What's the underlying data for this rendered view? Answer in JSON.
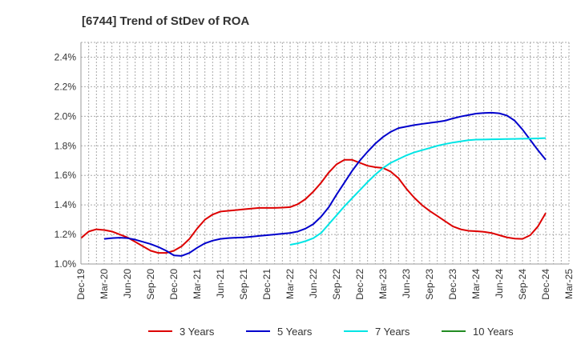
{
  "chart_data": {
    "type": "line",
    "title": "[6744]  Trend of StDev of ROA",
    "xlabel": "",
    "ylabel": "",
    "ylim": [
      1.0,
      2.5
    ],
    "yticks": [
      1.0,
      1.2,
      1.4,
      1.6,
      1.8,
      2.0,
      2.2,
      2.4
    ],
    "ytick_labels": [
      "1.0%",
      "1.2%",
      "1.4%",
      "1.6%",
      "1.8%",
      "2.0%",
      "2.2%",
      "2.4%"
    ],
    "xtick_labels": [
      "Dec-19",
      "Mar-20",
      "Jun-20",
      "Sep-20",
      "Dec-20",
      "Mar-21",
      "Jun-21",
      "Sep-21",
      "Dec-21",
      "Mar-22",
      "Jun-22",
      "Sep-22",
      "Dec-22",
      "Mar-23",
      "Jun-23",
      "Sep-23",
      "Dec-23",
      "Mar-24",
      "Jun-24",
      "Sep-24",
      "Dec-24",
      "Mar-25"
    ],
    "x_range": [
      "Dec-19",
      "Mar-25"
    ],
    "grid": true,
    "legend_position": "bottom",
    "series": [
      {
        "name": "3 Years",
        "color": "#dd0000",
        "x": [
          "Dec-19",
          "Jan-20",
          "Feb-20",
          "Mar-20",
          "Apr-20",
          "May-20",
          "Jun-20",
          "Jul-20",
          "Aug-20",
          "Sep-20",
          "Oct-20",
          "Nov-20",
          "Dec-20",
          "Jan-21",
          "Feb-21",
          "Mar-21",
          "Apr-21",
          "May-21",
          "Jun-21",
          "Jul-21",
          "Aug-21",
          "Sep-21",
          "Oct-21",
          "Nov-21",
          "Dec-21",
          "Jan-22",
          "Feb-22",
          "Mar-22",
          "Apr-22",
          "May-22",
          "Jun-22",
          "Jul-22",
          "Aug-22",
          "Sep-22",
          "Oct-22",
          "Nov-22",
          "Dec-22",
          "Jan-23",
          "Feb-23",
          "Mar-23",
          "Apr-23",
          "May-23",
          "Jun-23",
          "Jul-23",
          "Aug-23",
          "Sep-23",
          "Oct-23",
          "Nov-23",
          "Dec-23",
          "Jan-24",
          "Feb-24",
          "Mar-24",
          "Apr-24",
          "May-24",
          "Jun-24",
          "Jul-24",
          "Aug-24",
          "Sep-24",
          "Oct-24",
          "Nov-24",
          "Dec-24"
        ],
        "values": [
          1.175,
          1.22,
          1.235,
          1.23,
          1.22,
          1.2,
          1.18,
          1.15,
          1.12,
          1.09,
          1.075,
          1.075,
          1.09,
          1.12,
          1.17,
          1.24,
          1.3,
          1.335,
          1.355,
          1.36,
          1.365,
          1.37,
          1.375,
          1.38,
          1.38,
          1.38,
          1.382,
          1.385,
          1.405,
          1.44,
          1.49,
          1.55,
          1.62,
          1.675,
          1.705,
          1.705,
          1.685,
          1.665,
          1.655,
          1.65,
          1.625,
          1.58,
          1.51,
          1.45,
          1.4,
          1.36,
          1.325,
          1.29,
          1.255,
          1.235,
          1.225,
          1.222,
          1.218,
          1.21,
          1.195,
          1.18,
          1.172,
          1.17,
          1.195,
          1.255,
          1.345
        ]
      },
      {
        "name": "5 Years",
        "color": "#0000cc",
        "x": [
          "Mar-20",
          "Apr-20",
          "May-20",
          "Jun-20",
          "Jul-20",
          "Aug-20",
          "Sep-20",
          "Oct-20",
          "Nov-20",
          "Dec-20",
          "Jan-21",
          "Feb-21",
          "Mar-21",
          "Apr-21",
          "May-21",
          "Jun-21",
          "Jul-21",
          "Aug-21",
          "Sep-21",
          "Oct-21",
          "Nov-21",
          "Dec-21",
          "Jan-22",
          "Feb-22",
          "Mar-22",
          "Apr-22",
          "May-22",
          "Jun-22",
          "Jul-22",
          "Aug-22",
          "Sep-22",
          "Oct-22",
          "Nov-22",
          "Dec-22",
          "Jan-23",
          "Feb-23",
          "Mar-23",
          "Apr-23",
          "May-23",
          "Jun-23",
          "Jul-23",
          "Aug-23",
          "Sep-23",
          "Oct-23",
          "Nov-23",
          "Dec-23",
          "Jan-24",
          "Feb-24",
          "Mar-24",
          "Apr-24",
          "May-24",
          "Jun-24",
          "Jul-24",
          "Aug-24",
          "Sep-24",
          "Oct-24",
          "Nov-24",
          "Dec-24"
        ],
        "values": [
          1.17,
          1.175,
          1.178,
          1.175,
          1.165,
          1.15,
          1.135,
          1.115,
          1.09,
          1.058,
          1.055,
          1.075,
          1.11,
          1.14,
          1.158,
          1.17,
          1.175,
          1.178,
          1.18,
          1.185,
          1.19,
          1.195,
          1.2,
          1.205,
          1.21,
          1.22,
          1.24,
          1.27,
          1.32,
          1.385,
          1.47,
          1.55,
          1.63,
          1.7,
          1.76,
          1.815,
          1.86,
          1.895,
          1.92,
          1.93,
          1.94,
          1.948,
          1.955,
          1.962,
          1.97,
          1.985,
          1.998,
          2.008,
          2.018,
          2.022,
          2.024,
          2.02,
          2.005,
          1.97,
          1.91,
          1.84,
          1.77,
          1.705
        ]
      },
      {
        "name": "7 Years",
        "color": "#00e5e5",
        "x": [
          "Mar-22",
          "Apr-22",
          "May-22",
          "Jun-22",
          "Jul-22",
          "Aug-22",
          "Sep-22",
          "Oct-22",
          "Nov-22",
          "Dec-22",
          "Jan-23",
          "Feb-23",
          "Mar-23",
          "Apr-23",
          "May-23",
          "Jun-23",
          "Jul-23",
          "Aug-23",
          "Sep-23",
          "Oct-23",
          "Nov-23",
          "Dec-23",
          "Jan-24",
          "Feb-24",
          "Mar-24",
          "Apr-24",
          "May-24",
          "Jun-24",
          "Jul-24",
          "Aug-24",
          "Sep-24",
          "Oct-24",
          "Nov-24",
          "Dec-24"
        ],
        "values": [
          1.13,
          1.14,
          1.155,
          1.175,
          1.21,
          1.27,
          1.33,
          1.39,
          1.445,
          1.5,
          1.555,
          1.605,
          1.65,
          1.685,
          1.71,
          1.735,
          1.755,
          1.77,
          1.785,
          1.8,
          1.812,
          1.822,
          1.83,
          1.838,
          1.842,
          1.843,
          1.844,
          1.845,
          1.846,
          1.847,
          1.848,
          1.849,
          1.85,
          1.852
        ]
      },
      {
        "name": "10 Years",
        "color": "#228b22",
        "x": [],
        "values": []
      }
    ]
  }
}
